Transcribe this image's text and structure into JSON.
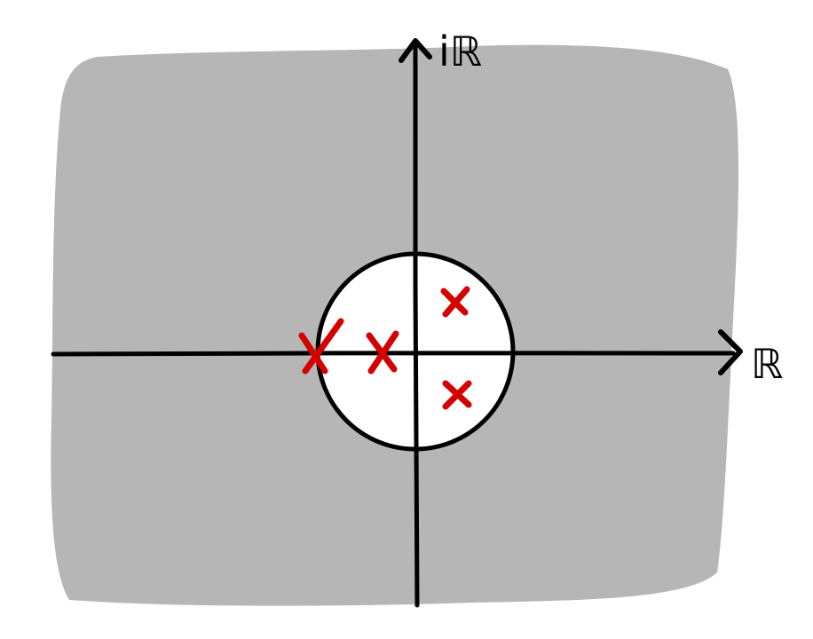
{
  "diagram": {
    "type": "complex-plane-sketch",
    "axes": {
      "real_label": "ℝ",
      "imaginary_label": "iℝ"
    },
    "colors": {
      "shaded_region": "#b6b6b6",
      "unit_disk": "#ffffff",
      "axis_stroke": "#000000",
      "pole_marker": "#d50000"
    },
    "markers": {
      "count": 4,
      "symbol": "x",
      "on_real_axis": 2,
      "off_real_axis": 2
    }
  }
}
